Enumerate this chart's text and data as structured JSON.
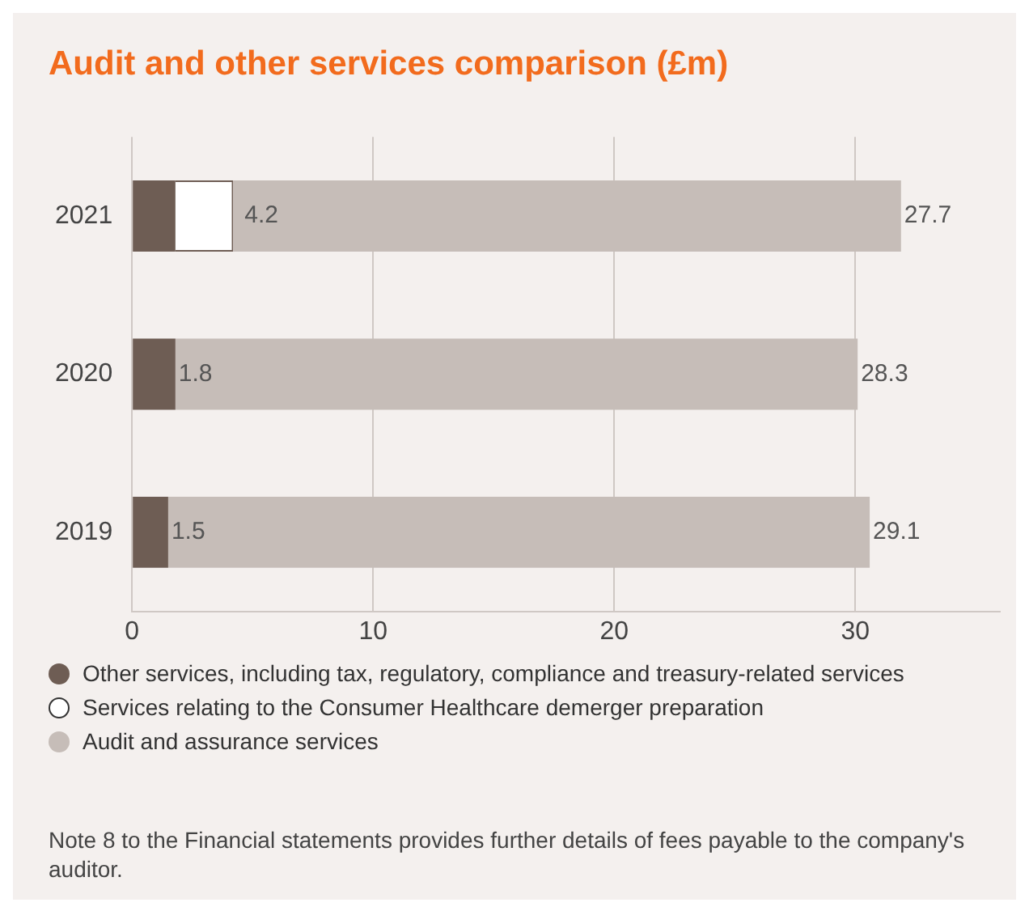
{
  "chart_data": {
    "type": "bar",
    "orientation": "horizontal",
    "stacked": true,
    "title": "Audit and other services comparison (£m)",
    "categories": [
      "2021",
      "2020",
      "2019"
    ],
    "series": [
      {
        "name": "Other services, including tax, regulatory, compliance and treasury-related services",
        "color": "#6e5d54",
        "values": [
          1.8,
          1.8,
          1.5
        ],
        "value_labels": [
          null,
          "1.8",
          "1.5"
        ]
      },
      {
        "name": "Services relating to the Consumer Healthcare demerger preparation",
        "color": "#ffffff",
        "values": [
          2.4,
          null,
          null
        ]
      },
      {
        "name": "Audit and assurance services",
        "color": "#c6bdb8",
        "values": [
          27.7,
          28.3,
          29.1
        ],
        "value_labels": [
          "27.7",
          "28.3",
          "29.1"
        ]
      }
    ],
    "xlim": [
      0,
      36
    ],
    "xticks": [
      0,
      10,
      20,
      30
    ],
    "grid": "x",
    "legend": "bottom",
    "annotations": [
      {
        "text": "4.2",
        "x": 4.2,
        "y": "2021"
      },
      "Note 8 to the Financial statements provides further details of fees payable to the company's auditor."
    ]
  }
}
